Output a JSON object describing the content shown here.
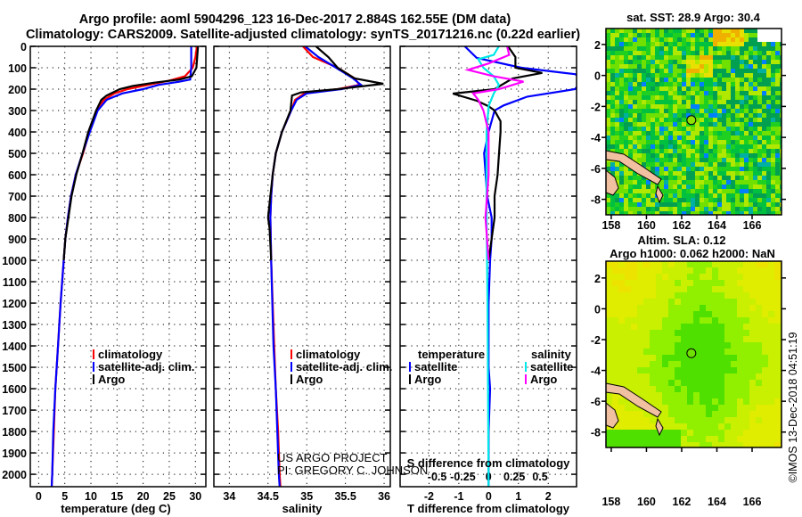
{
  "title": {
    "line1": "Argo profile: aoml 5904296_123 16-Dec-2017 2.884S 162.55E (DM data)",
    "line2": "Climatology: CARS2009. Satellite-adjusted climatology: synTS_20171216.nc (0.22d earlier)"
  },
  "credit": {
    "line1": "US ARGO PROJECT",
    "line2": "PI: GREGORY C. JOHNSON"
  },
  "timestamp": "©IMOS 13-Dec-2018 04:51:19",
  "colors": {
    "climatology": "#ff0000",
    "satellite": "#0000ff",
    "argo": "#000000",
    "sal_satellite": "#00e8e8",
    "sal_argo": "#ff00ff"
  },
  "chart_data": [
    {
      "type": "line",
      "id": "temperature",
      "xlabel": "temperature (deg C)",
      "ylabel": "",
      "xlim": [
        -1.6,
        32.0
      ],
      "ylim": [
        2058,
        0
      ],
      "xticks": [
        0,
        5,
        10,
        15,
        20,
        25,
        30
      ],
      "depth_ticks": [
        0,
        100,
        200,
        300,
        400,
        500,
        600,
        700,
        800,
        900,
        1000,
        1100,
        1200,
        1300,
        1400,
        1500,
        1600,
        1700,
        1800,
        1900,
        2000
      ],
      "legend": [
        "climatology",
        "satellite-adj. clim.",
        "Argo"
      ],
      "series": [
        {
          "name": "climatology",
          "color": "#ff0000",
          "points": [
            [
              30.3,
              0
            ],
            [
              30.0,
              50
            ],
            [
              29.5,
              100
            ],
            [
              28,
              140
            ],
            [
              25,
              160
            ],
            [
              21,
              180
            ],
            [
              17,
              200
            ],
            [
              14.5,
              220
            ],
            [
              12.5,
              250
            ],
            [
              11.5,
              280
            ],
            [
              11,
              300
            ],
            [
              9.7,
              400
            ],
            [
              8.5,
              500
            ],
            [
              7.1,
              600
            ],
            [
              6.2,
              700
            ],
            [
              5.6,
              800
            ],
            [
              5.1,
              900
            ],
            [
              4.8,
              1000
            ],
            [
              4.2,
              1200
            ],
            [
              3.7,
              1400
            ],
            [
              3.2,
              1600
            ],
            [
              2.9,
              1800
            ],
            [
              2.6,
              2000
            ],
            [
              2.5,
              2058
            ]
          ]
        },
        {
          "name": "satellite-adj. clim.",
          "color": "#0000ff",
          "points": [
            [
              29.2,
              0
            ],
            [
              29.2,
              100
            ],
            [
              29.0,
              155
            ],
            [
              27,
              165
            ],
            [
              23,
              180
            ],
            [
              20,
              200
            ],
            [
              16,
              220
            ],
            [
              13,
              250
            ],
            [
              11.3,
              300
            ],
            [
              9.8,
              400
            ],
            [
              8.4,
              500
            ],
            [
              7.1,
              600
            ],
            [
              6.2,
              700
            ],
            [
              5.6,
              800
            ],
            [
              5.1,
              900
            ],
            [
              4.8,
              1000
            ],
            [
              4.2,
              1200
            ],
            [
              3.7,
              1400
            ],
            [
              3.2,
              1600
            ],
            [
              2.8,
              1800
            ],
            [
              2.6,
              2000
            ],
            [
              2.5,
              2058
            ]
          ]
        },
        {
          "name": "Argo",
          "color": "#000000",
          "points": [
            [
              30.5,
              0
            ],
            [
              30.2,
              100
            ],
            [
              29.3,
              140
            ],
            [
              27,
              155
            ],
            [
              22,
              170
            ],
            [
              18,
              185
            ],
            [
              15.5,
              200
            ],
            [
              13,
              230
            ],
            [
              12,
              250
            ],
            [
              11,
              300
            ],
            [
              9.5,
              400
            ],
            [
              8.4,
              500
            ],
            [
              7.2,
              600
            ],
            [
              6.3,
              700
            ],
            [
              5.7,
              800
            ],
            [
              5.1,
              900
            ],
            [
              4.8,
              1000
            ]
          ]
        }
      ]
    },
    {
      "type": "line",
      "id": "salinity",
      "xlabel": "salinity",
      "ylabel": "",
      "xlim": [
        33.8,
        36.08
      ],
      "ylim": [
        2058,
        0
      ],
      "xticks": [
        34,
        34.5,
        35,
        35.5,
        36
      ],
      "legend": [
        "climatology",
        "satellite-adj. clim.",
        "Argo"
      ],
      "series": [
        {
          "name": "climatology",
          "color": "#ff0000",
          "points": [
            [
              34.95,
              0
            ],
            [
              35.08,
              50
            ],
            [
              35.4,
              100
            ],
            [
              35.62,
              150
            ],
            [
              35.68,
              180
            ],
            [
              35.4,
              200
            ],
            [
              34.97,
              220
            ],
            [
              34.85,
              250
            ],
            [
              34.8,
              300
            ],
            [
              34.68,
              400
            ],
            [
              34.6,
              500
            ],
            [
              34.56,
              600
            ],
            [
              34.54,
              700
            ],
            [
              34.53,
              800
            ],
            [
              34.54,
              1000
            ],
            [
              34.58,
              1400
            ],
            [
              34.6,
              1600
            ],
            [
              34.63,
              1800
            ],
            [
              34.65,
              2000
            ],
            [
              34.66,
              2058
            ]
          ]
        },
        {
          "name": "satellite-adj. clim.",
          "color": "#0000ff",
          "points": [
            [
              34.98,
              0
            ],
            [
              35.15,
              50
            ],
            [
              35.38,
              100
            ],
            [
              35.6,
              150
            ],
            [
              35.7,
              180
            ],
            [
              35.45,
              200
            ],
            [
              35.0,
              220
            ],
            [
              34.87,
              250
            ],
            [
              34.8,
              300
            ],
            [
              34.68,
              400
            ],
            [
              34.6,
              500
            ],
            [
              34.56,
              600
            ],
            [
              34.54,
              700
            ],
            [
              34.53,
              800
            ],
            [
              34.54,
              1000
            ],
            [
              34.57,
              1400
            ],
            [
              34.6,
              1600
            ],
            [
              34.62,
              1800
            ],
            [
              34.64,
              2000
            ],
            [
              34.65,
              2058
            ]
          ]
        },
        {
          "name": "Argo",
          "color": "#000000",
          "points": [
            [
              35.12,
              0
            ],
            [
              35.28,
              50
            ],
            [
              35.4,
              100
            ],
            [
              35.62,
              150
            ],
            [
              35.99,
              175
            ],
            [
              35.4,
              200
            ],
            [
              34.93,
              215
            ],
            [
              34.81,
              230
            ],
            [
              34.79,
              300
            ],
            [
              34.68,
              400
            ],
            [
              34.6,
              500
            ],
            [
              34.56,
              600
            ],
            [
              34.53,
              700
            ],
            [
              34.5,
              800
            ],
            [
              34.52,
              850
            ],
            [
              34.54,
              1000
            ]
          ]
        }
      ]
    },
    {
      "type": "line",
      "id": "difference",
      "xlabel": "T difference from climatology",
      "xlabel2": "S difference from climatology",
      "xlim": [
        -2.97,
        2.95
      ],
      "ylim": [
        2058,
        0
      ],
      "xticks": [
        -2,
        -1,
        0,
        1,
        2
      ],
      "xlim2": [
        -0.86,
        0.855
      ],
      "xticks2": [
        -0.5,
        -0.25,
        0,
        0.25,
        0.5
      ],
      "legend": {
        "temperature_title": "temperature",
        "salinity_title": "salinity",
        "items": [
          "satellite",
          "Argo",
          "satellite",
          "Argo"
        ]
      },
      "series": [
        {
          "name": "temperature satellite",
          "axis": "T",
          "color": "#0000ff",
          "points": [
            [
              -0.8,
              0
            ],
            [
              -0.4,
              54
            ],
            [
              1.1,
              100
            ],
            [
              2.9,
              130
            ],
            [
              3.2,
              150
            ],
            [
              2.9,
              200
            ],
            [
              1.3,
              235
            ],
            [
              0.5,
              276
            ],
            [
              0.2,
              300
            ],
            [
              0,
              400
            ],
            [
              -0.15,
              500
            ],
            [
              -0.1,
              600
            ],
            [
              -0.05,
              700
            ],
            [
              0.1,
              800
            ],
            [
              0.1,
              900
            ],
            [
              0.05,
              1000
            ],
            [
              0,
              1200
            ],
            [
              0,
              1500
            ],
            [
              0.05,
              1600
            ],
            [
              0,
              1800
            ],
            [
              0,
              2058
            ]
          ]
        },
        {
          "name": "temperature Argo",
          "axis": "T",
          "color": "#000000",
          "points": [
            [
              0.65,
              0
            ],
            [
              0.9,
              50
            ],
            [
              0.9,
              100
            ],
            [
              1.8,
              124
            ],
            [
              0.8,
              150
            ],
            [
              0.2,
              200
            ],
            [
              -1.2,
              221
            ],
            [
              -0.4,
              254
            ],
            [
              0,
              280
            ],
            [
              0.2,
              300
            ],
            [
              0.4,
              350
            ],
            [
              0.4,
              400
            ],
            [
              0.35,
              500
            ],
            [
              0.3,
              600
            ],
            [
              0.2,
              700
            ],
            [
              0.2,
              800
            ],
            [
              0.1,
              900
            ],
            [
              0,
              1000
            ]
          ]
        },
        {
          "name": "salinity satellite",
          "axis": "S",
          "color": "#00e8e8",
          "points": [
            [
              0.1,
              0
            ],
            [
              0.05,
              40
            ],
            [
              -0.1,
              60
            ],
            [
              -0.05,
              100
            ],
            [
              0.05,
              140
            ],
            [
              0.1,
              180
            ],
            [
              0.05,
              220
            ],
            [
              0,
              280
            ],
            [
              -0.02,
              400
            ],
            [
              -0.02,
              800
            ],
            [
              -0.01,
              1200
            ],
            [
              0,
              2058
            ]
          ]
        },
        {
          "name": "salinity Argo",
          "axis": "S",
          "color": "#ff00ff",
          "points": [
            [
              0.18,
              0
            ],
            [
              0.2,
              40
            ],
            [
              0,
              80
            ],
            [
              -0.2,
              110
            ],
            [
              0.05,
              140
            ],
            [
              0.34,
              165
            ],
            [
              0.1,
              200
            ],
            [
              -0.15,
              220
            ],
            [
              -0.1,
              250
            ],
            [
              -0.05,
              300
            ],
            [
              0,
              400
            ],
            [
              0,
              600
            ],
            [
              -0.03,
              800
            ],
            [
              0,
              1000
            ]
          ]
        }
      ]
    },
    {
      "type": "heatmap",
      "id": "sst-map",
      "title": "sat. SST: 28.9 Argo: 30.4",
      "xlim": [
        157.7,
        167.67
      ],
      "ylim": [
        -9.0,
        3.03
      ],
      "xticks": [
        158,
        160,
        162,
        164,
        166
      ],
      "yticks": [
        2,
        0,
        -2,
        -4,
        -6,
        -8
      ],
      "marker": {
        "lon": 162.55,
        "lat": -2.884
      },
      "palette": [
        "#00a050",
        "#00c040",
        "#20d020",
        "#70e000",
        "#b0e800",
        "#e8e000",
        "#f0b000",
        "#00b0a0",
        "#0080ff"
      ]
    },
    {
      "type": "heatmap",
      "id": "sla-map",
      "title": "Altim. SLA: 0.12",
      "subtitle": "Argo h1000: 0.062 h2000: NaN",
      "xlim": [
        157.7,
        167.67
      ],
      "ylim": [
        -9.0,
        3.09
      ],
      "xticks": [
        158,
        160,
        162,
        164,
        166
      ],
      "yticks": [
        2,
        0,
        -2,
        -4,
        -6,
        -8
      ],
      "marker": {
        "lon": 162.55,
        "lat": -2.884
      },
      "palette": [
        "#50e000",
        "#90f000",
        "#c8f000",
        "#e0ec00",
        "#ece400"
      ]
    }
  ]
}
